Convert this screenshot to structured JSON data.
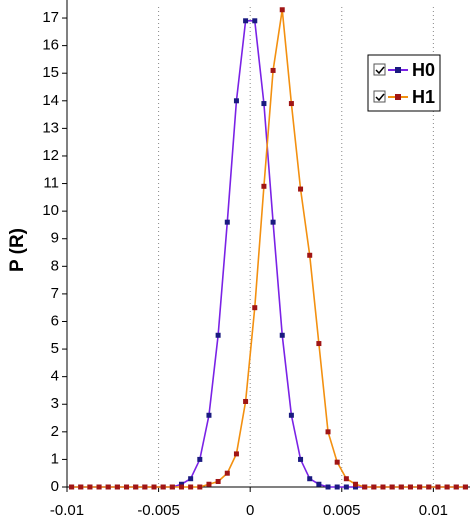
{
  "chart_data": {
    "type": "line",
    "y_label": "P (R)",
    "x": [
      -0.00975,
      -0.00925,
      -0.00875,
      -0.00825,
      -0.00775,
      -0.00725,
      -0.00675,
      -0.00625,
      -0.00575,
      -0.00525,
      -0.00475,
      -0.00425,
      -0.00375,
      -0.00325,
      -0.00275,
      -0.00225,
      -0.00175,
      -0.00125,
      -0.00075,
      -0.00025,
      0.00025,
      0.00075,
      0.00125,
      0.00175,
      0.00225,
      0.00275,
      0.00325,
      0.00375,
      0.00425,
      0.00475,
      0.00525,
      0.00575,
      0.00625,
      0.00675,
      0.00725,
      0.00775,
      0.00825,
      0.00875,
      0.00925,
      0.00975,
      0.01025,
      0.01075,
      0.01125,
      0.01175
    ],
    "series": [
      {
        "name": "H0",
        "color": "#7a22e6",
        "marker_color": "#1a1a80",
        "values": [
          0,
          0,
          0,
          0,
          0,
          0,
          0,
          0,
          0,
          0,
          0,
          0,
          0.1,
          0.3,
          1.0,
          2.6,
          5.5,
          9.6,
          14.0,
          16.9,
          16.9,
          13.9,
          9.6,
          5.5,
          2.6,
          1.0,
          0.3,
          0.1,
          0,
          0,
          0,
          0,
          0,
          0,
          0,
          0,
          0,
          0,
          0,
          0,
          0,
          0,
          0,
          0
        ]
      },
      {
        "name": "H1",
        "color": "#f39010",
        "marker_color": "#a01515",
        "values": [
          0,
          0,
          0,
          0,
          0,
          0,
          0,
          0,
          0,
          0,
          0,
          0,
          0,
          0,
          0,
          0.1,
          0.2,
          0.5,
          1.2,
          3.1,
          6.5,
          10.9,
          15.1,
          17.3,
          13.9,
          10.8,
          8.4,
          5.2,
          2.0,
          0.9,
          0.3,
          0.1,
          0,
          0,
          0,
          0,
          0,
          0,
          0,
          0,
          0,
          0,
          0,
          0
        ]
      }
    ],
    "xlim": [
      -0.01,
      0.012
    ],
    "xticks": [
      -0.01,
      -0.005,
      0,
      0.005,
      0.01
    ],
    "ylim": [
      0,
      17.4
    ],
    "yticks": [
      0,
      1,
      2,
      3,
      4,
      5,
      6,
      7,
      8,
      9,
      10,
      11,
      12,
      13,
      14,
      15,
      16,
      17
    ],
    "xgrid": true,
    "legend": "upper right"
  }
}
